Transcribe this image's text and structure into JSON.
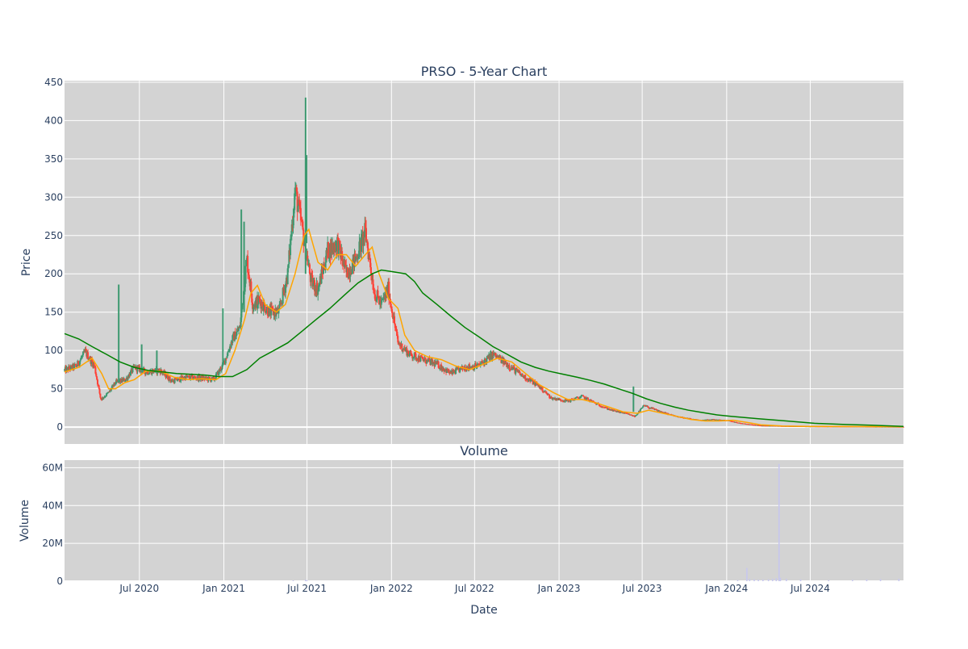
{
  "chart_data": [
    {
      "type": "candlestick",
      "title": "PRSO - 5-Year Chart",
      "ylabel": "Price",
      "xlabel": "",
      "ylim": [
        -22,
        452
      ],
      "y_ticks": [
        0,
        50,
        100,
        150,
        200,
        250,
        300,
        350,
        400,
        450
      ],
      "x_range": [
        "2020-01-20",
        "2025-01-20"
      ],
      "x_ticks": [
        {
          "date": "2020-07-01",
          "label": "Jul 2020"
        },
        {
          "date": "2021-01-01",
          "label": "Jan 2021"
        },
        {
          "date": "2021-07-01",
          "label": "Jul 2021"
        },
        {
          "date": "2022-01-01",
          "label": "Jan 2022"
        },
        {
          "date": "2022-07-01",
          "label": "Jul 2022"
        },
        {
          "date": "2023-01-01",
          "label": "Jan 2023"
        },
        {
          "date": "2023-07-01",
          "label": "Jul 2023"
        },
        {
          "date": "2024-01-01",
          "label": "Jan 2024"
        },
        {
          "date": "2024-07-01",
          "label": "Jul 2024"
        }
      ],
      "grid": true,
      "background": "#d3d3d3",
      "increasing_color": "#3d9970",
      "decreasing_color": "#ff4136",
      "close_series": [
        [
          "2020-01-20",
          74
        ],
        [
          "2020-02-15",
          80
        ],
        [
          "2020-03-05",
          98
        ],
        [
          "2020-03-25",
          80
        ],
        [
          "2020-04-08",
          36
        ],
        [
          "2020-04-25",
          45
        ],
        [
          "2020-05-10",
          58
        ],
        [
          "2020-06-01",
          62
        ],
        [
          "2020-06-20",
          78
        ],
        [
          "2020-07-15",
          72
        ],
        [
          "2020-08-15",
          74
        ],
        [
          "2020-09-10",
          60
        ],
        [
          "2020-10-10",
          65
        ],
        [
          "2020-11-10",
          64
        ],
        [
          "2020-12-10",
          62
        ],
        [
          "2020-12-31",
          82
        ],
        [
          "2021-01-20",
          115
        ],
        [
          "2021-02-05",
          130
        ],
        [
          "2021-02-20",
          220
        ],
        [
          "2021-03-05",
          160
        ],
        [
          "2021-03-20",
          165
        ],
        [
          "2021-04-10",
          150
        ],
        [
          "2021-05-01",
          150
        ],
        [
          "2021-05-20",
          200
        ],
        [
          "2021-06-05",
          310
        ],
        [
          "2021-06-20",
          260
        ],
        [
          "2021-07-10",
          190
        ],
        [
          "2021-07-25",
          180
        ],
        [
          "2021-08-15",
          230
        ],
        [
          "2021-09-05",
          240
        ],
        [
          "2021-09-25",
          200
        ],
        [
          "2021-10-15",
          220
        ],
        [
          "2021-11-05",
          255
        ],
        [
          "2021-11-25",
          175
        ],
        [
          "2021-12-10",
          160
        ],
        [
          "2021-12-25",
          180
        ],
        [
          "2022-01-15",
          110
        ],
        [
          "2022-02-10",
          95
        ],
        [
          "2022-03-10",
          88
        ],
        [
          "2022-04-10",
          82
        ],
        [
          "2022-05-10",
          70
        ],
        [
          "2022-06-10",
          78
        ],
        [
          "2022-07-10",
          80
        ],
        [
          "2022-08-10",
          95
        ],
        [
          "2022-09-10",
          82
        ],
        [
          "2022-10-10",
          68
        ],
        [
          "2022-11-15",
          55
        ],
        [
          "2022-12-15",
          38
        ],
        [
          "2023-01-20",
          34
        ],
        [
          "2023-02-20",
          40
        ],
        [
          "2023-03-25",
          30
        ],
        [
          "2023-04-25",
          22
        ],
        [
          "2023-05-25",
          18
        ],
        [
          "2023-06-15",
          14
        ],
        [
          "2023-07-05",
          28
        ],
        [
          "2023-08-01",
          22
        ],
        [
          "2023-09-01",
          16
        ],
        [
          "2023-10-01",
          12
        ],
        [
          "2023-11-01",
          9
        ],
        [
          "2023-12-01",
          10
        ],
        [
          "2024-01-01",
          9
        ],
        [
          "2024-02-01",
          5
        ],
        [
          "2024-03-15",
          2
        ],
        [
          "2024-05-01",
          1.5
        ],
        [
          "2024-07-01",
          1
        ],
        [
          "2024-09-01",
          0.8
        ],
        [
          "2024-11-01",
          0.6
        ],
        [
          "2025-01-20",
          0.5
        ]
      ],
      "spikes": [
        {
          "date": "2020-05-17",
          "high": 186,
          "low": 58
        },
        {
          "date": "2020-07-06",
          "high": 108,
          "low": 72
        },
        {
          "date": "2020-08-08",
          "high": 100,
          "low": 70
        },
        {
          "date": "2020-12-30",
          "high": 155,
          "low": 80
        },
        {
          "date": "2021-02-08",
          "high": 284,
          "low": 140
        },
        {
          "date": "2021-02-14",
          "high": 268,
          "low": 150
        },
        {
          "date": "2021-06-28",
          "high": 430,
          "low": 200
        },
        {
          "date": "2021-06-30",
          "high": 355,
          "low": 240
        },
        {
          "date": "2023-06-12",
          "high": 53,
          "low": 20
        }
      ],
      "overlays": [
        {
          "name": "",
          "color": "#ffa500",
          "points": [
            [
              "2020-01-20",
              72
            ],
            [
              "2020-02-20",
              78
            ],
            [
              "2020-03-20",
              90
            ],
            [
              "2020-04-10",
              70
            ],
            [
              "2020-04-25",
              50
            ],
            [
              "2020-05-10",
              50
            ],
            [
              "2020-05-30",
              58
            ],
            [
              "2020-06-20",
              62
            ],
            [
              "2020-07-15",
              73
            ],
            [
              "2020-08-15",
              73
            ],
            [
              "2020-09-15",
              65
            ],
            [
              "2020-10-15",
              62
            ],
            [
              "2020-11-15",
              63
            ],
            [
              "2020-12-15",
              62
            ],
            [
              "2021-01-05",
              70
            ],
            [
              "2021-01-25",
              100
            ],
            [
              "2021-02-15",
              140
            ],
            [
              "2021-03-01",
              175
            ],
            [
              "2021-03-15",
              185
            ],
            [
              "2021-04-01",
              160
            ],
            [
              "2021-04-25",
              150
            ],
            [
              "2021-05-15",
              160
            ],
            [
              "2021-06-05",
              200
            ],
            [
              "2021-06-25",
              250
            ],
            [
              "2021-07-05",
              258
            ],
            [
              "2021-07-25",
              215
            ],
            [
              "2021-08-15",
              205
            ],
            [
              "2021-09-05",
              225
            ],
            [
              "2021-09-25",
              225
            ],
            [
              "2021-10-15",
              210
            ],
            [
              "2021-11-05",
              225
            ],
            [
              "2021-11-20",
              235
            ],
            [
              "2021-12-05",
              200
            ],
            [
              "2021-12-25",
              168
            ],
            [
              "2022-01-15",
              155
            ],
            [
              "2022-01-30",
              120
            ],
            [
              "2022-02-20",
              100
            ],
            [
              "2022-03-20",
              92
            ],
            [
              "2022-04-20",
              88
            ],
            [
              "2022-05-20",
              80
            ],
            [
              "2022-06-20",
              75
            ],
            [
              "2022-07-20",
              82
            ],
            [
              "2022-08-20",
              90
            ],
            [
              "2022-09-20",
              85
            ],
            [
              "2022-10-20",
              70
            ],
            [
              "2022-11-20",
              55
            ],
            [
              "2022-12-20",
              45
            ],
            [
              "2023-01-20",
              36
            ],
            [
              "2023-02-20",
              36
            ],
            [
              "2023-03-20",
              32
            ],
            [
              "2023-04-20",
              26
            ],
            [
              "2023-05-20",
              20
            ],
            [
              "2023-06-20",
              18
            ],
            [
              "2023-07-15",
              22
            ],
            [
              "2023-08-15",
              18
            ],
            [
              "2023-09-15",
              14
            ],
            [
              "2023-10-15",
              10
            ],
            [
              "2023-11-15",
              8
            ],
            [
              "2023-12-15",
              8
            ],
            [
              "2024-01-15",
              9
            ],
            [
              "2024-02-15",
              6
            ],
            [
              "2024-03-15",
              3
            ],
            [
              "2024-05-01",
              1.5
            ],
            [
              "2024-07-01",
              1
            ],
            [
              "2024-10-01",
              0.7
            ],
            [
              "2025-01-20",
              0.5
            ]
          ]
        },
        {
          "name": "",
          "color": "#008000",
          "points": [
            [
              "2020-01-20",
              122
            ],
            [
              "2020-02-20",
              115
            ],
            [
              "2020-03-20",
              105
            ],
            [
              "2020-04-20",
              95
            ],
            [
              "2020-05-20",
              85
            ],
            [
              "2020-06-20",
              78
            ],
            [
              "2020-07-20",
              74
            ],
            [
              "2020-08-20",
              72
            ],
            [
              "2020-09-20",
              70
            ],
            [
              "2020-10-20",
              69
            ],
            [
              "2020-11-20",
              68
            ],
            [
              "2020-12-20",
              66
            ],
            [
              "2021-01-20",
              66
            ],
            [
              "2021-02-20",
              75
            ],
            [
              "2021-03-20",
              90
            ],
            [
              "2021-04-20",
              100
            ],
            [
              "2021-05-20",
              110
            ],
            [
              "2021-06-20",
              125
            ],
            [
              "2021-07-20",
              140
            ],
            [
              "2021-08-20",
              155
            ],
            [
              "2021-09-20",
              172
            ],
            [
              "2021-10-20",
              188
            ],
            [
              "2021-11-20",
              200
            ],
            [
              "2021-12-10",
              205
            ],
            [
              "2022-01-01",
              203
            ],
            [
              "2022-02-01",
              200
            ],
            [
              "2022-02-20",
              190
            ],
            [
              "2022-03-10",
              175
            ],
            [
              "2022-04-10",
              160
            ],
            [
              "2022-05-10",
              145
            ],
            [
              "2022-06-10",
              130
            ],
            [
              "2022-07-10",
              118
            ],
            [
              "2022-08-10",
              105
            ],
            [
              "2022-09-10",
              95
            ],
            [
              "2022-10-10",
              85
            ],
            [
              "2022-11-10",
              78
            ],
            [
              "2022-12-10",
              73
            ],
            [
              "2023-01-10",
              69
            ],
            [
              "2023-02-10",
              65
            ],
            [
              "2023-03-10",
              61
            ],
            [
              "2023-04-10",
              56
            ],
            [
              "2023-05-10",
              50
            ],
            [
              "2023-06-10",
              44
            ],
            [
              "2023-07-10",
              37
            ],
            [
              "2023-08-10",
              31
            ],
            [
              "2023-09-10",
              26
            ],
            [
              "2023-10-10",
              22
            ],
            [
              "2023-11-10",
              19
            ],
            [
              "2023-12-10",
              16
            ],
            [
              "2024-01-10",
              14
            ],
            [
              "2024-03-10",
              11
            ],
            [
              "2024-05-10",
              8
            ],
            [
              "2024-07-10",
              5
            ],
            [
              "2024-09-10",
              3.5
            ],
            [
              "2024-11-10",
              2.5
            ],
            [
              "2025-01-20",
              1
            ]
          ]
        }
      ]
    },
    {
      "type": "bar",
      "title": "Volume",
      "ylabel": "Volume",
      "xlabel": "Date",
      "ylim": [
        0,
        64000000
      ],
      "y_ticks": [
        {
          "value": 0,
          "label": "0"
        },
        {
          "value": 20000000,
          "label": "20M"
        },
        {
          "value": 40000000,
          "label": "40M"
        },
        {
          "value": 60000000,
          "label": "60M"
        }
      ],
      "x_range": [
        "2020-01-20",
        "2025-01-20"
      ],
      "x_ticks": [
        {
          "date": "2020-07-01",
          "label": "Jul 2020"
        },
        {
          "date": "2021-01-01",
          "label": "Jan 2021"
        },
        {
          "date": "2021-07-01",
          "label": "Jul 2021"
        },
        {
          "date": "2022-01-01",
          "label": "Jan 2022"
        },
        {
          "date": "2022-07-01",
          "label": "Jul 2022"
        },
        {
          "date": "2023-01-01",
          "label": "Jan 2023"
        },
        {
          "date": "2023-07-01",
          "label": "Jul 2023"
        },
        {
          "date": "2024-01-01",
          "label": "Jan 2024"
        },
        {
          "date": "2024-07-01",
          "label": "Jul 2024"
        }
      ],
      "grid": true,
      "background": "#d3d3d3",
      "bar_color": "#c7c7ee",
      "series": [
        {
          "values": [
            [
              "2021-06-01",
              400000
            ],
            [
              "2021-06-28",
              800000
            ],
            [
              "2021-07-01",
              500000
            ],
            [
              "2021-11-20",
              300000
            ],
            [
              "2023-06-12",
              200000
            ],
            [
              "2024-01-25",
              600000
            ],
            [
              "2024-02-14",
              7000000
            ],
            [
              "2024-02-20",
              1200000
            ],
            [
              "2024-03-01",
              1000000
            ],
            [
              "2024-03-10",
              800000
            ],
            [
              "2024-03-20",
              900000
            ],
            [
              "2024-04-01",
              1000000
            ],
            [
              "2024-04-10",
              1200000
            ],
            [
              "2024-04-18",
              1600000
            ],
            [
              "2024-04-24",
              62000000
            ],
            [
              "2024-04-27",
              1800000
            ],
            [
              "2024-05-10",
              1200000
            ],
            [
              "2024-06-10",
              900000
            ],
            [
              "2024-08-10",
              600000
            ],
            [
              "2024-10-01",
              700000
            ],
            [
              "2024-11-01",
              900000
            ],
            [
              "2024-12-01",
              1100000
            ],
            [
              "2025-01-10",
              1300000
            ]
          ]
        }
      ]
    }
  ]
}
